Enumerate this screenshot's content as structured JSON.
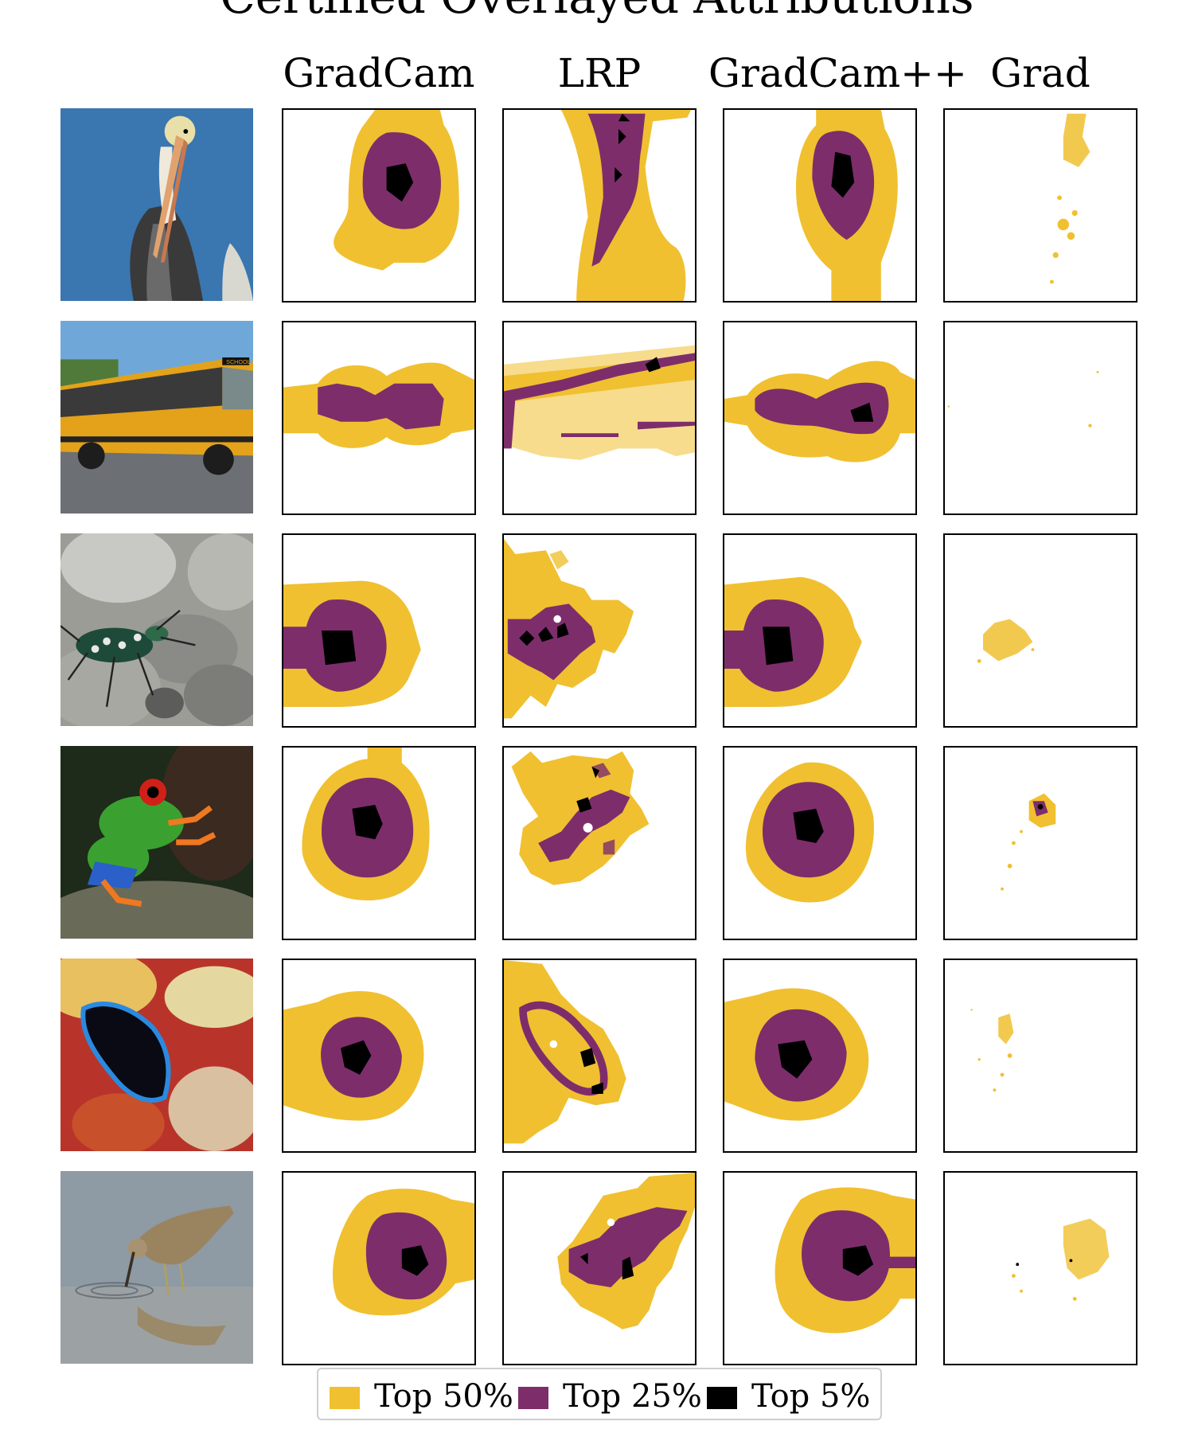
{
  "figure": {
    "title": "Certified Overlayed Attributions",
    "columns": [
      {
        "label": "GradCam"
      },
      {
        "label": "LRP"
      },
      {
        "label": "GradCam++"
      },
      {
        "label": "Grad"
      }
    ],
    "rows": [
      {
        "subject": "pelican"
      },
      {
        "subject": "school-bus"
      },
      {
        "subject": "tiger-beetle"
      },
      {
        "subject": "tree-frog"
      },
      {
        "subject": "flatworm"
      },
      {
        "subject": "dowitcher"
      }
    ]
  },
  "legend": {
    "items": [
      {
        "label": "Top 50%",
        "color": "#f0c030"
      },
      {
        "label": "Top 25%",
        "color": "#7e2d6b"
      },
      {
        "label": "Top 5%",
        "color": "#000000"
      }
    ]
  },
  "photo_text": {
    "bus_sign": "SCHOOL BUS"
  },
  "colors": {
    "top50": "#f0c030",
    "top25": "#7e2d6b",
    "top5": "#000000",
    "frame": "#000000"
  }
}
